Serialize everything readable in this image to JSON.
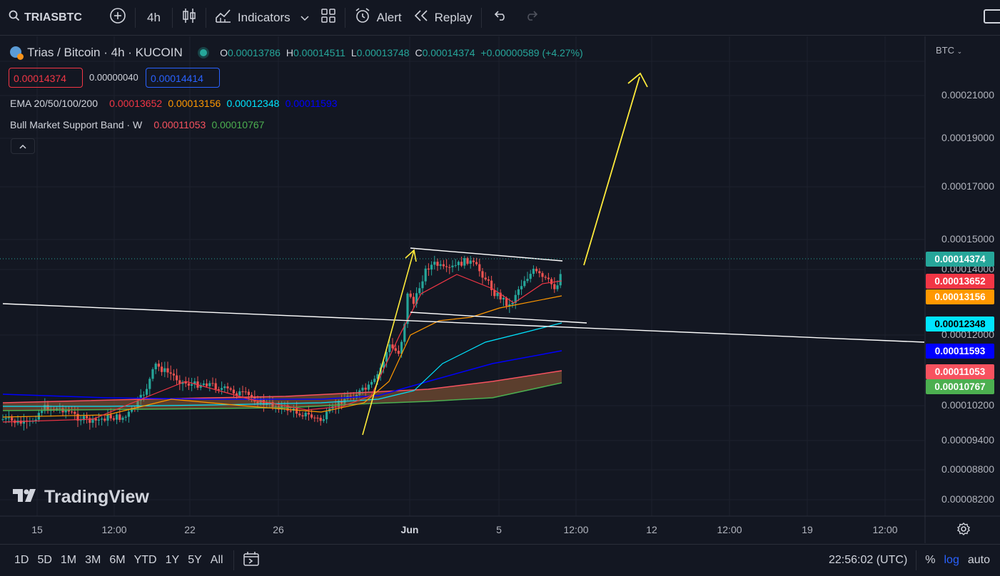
{
  "toolbar": {
    "symbol": "TRIASBTC",
    "interval": "4h",
    "indicators_label": "Indicators",
    "alert_label": "Alert",
    "replay_label": "Replay"
  },
  "header": {
    "title": "Trias / Bitcoin · 4h · KUCOIN",
    "o_label": "O",
    "o_value": "0.00013786",
    "h_label": "H",
    "h_value": "0.00014511",
    "l_label": "L",
    "l_value": "0.00013748",
    "c_label": "C",
    "c_value": "0.00014374",
    "change": "+0.00000589 (+4.27%)",
    "sell_price": "0.00014374",
    "spread": "0.00000040",
    "buy_price": "0.00014414",
    "currency": "BTC"
  },
  "indicators": {
    "ema_label": "EMA 20/50/100/200",
    "ema_values": [
      "0.00013652",
      "0.00013156",
      "0.00012348",
      "0.00011593"
    ],
    "bmsb_label": "Bull Market Support Band · W",
    "bmsb_values": [
      "0.00011053",
      "0.00010767"
    ]
  },
  "colors": {
    "up": "#26a69a",
    "down": "#ef5350",
    "ema20": "#f23645",
    "ema50": "#ff9800",
    "ema100": "#00e5ff",
    "ema200": "#0000ff",
    "bmsb_upper": "#f7525f",
    "bmsb_lower": "#4caf50",
    "annotation": "#ffeb3b"
  },
  "price_axis": [
    "0.00021000",
    "0.00019000",
    "0.00017000",
    "0.00015000",
    "0.00014000",
    "0.00012000",
    "0.00010200",
    "0.00009400",
    "0.00008800",
    "0.00008200"
  ],
  "price_tags": [
    {
      "text": "0.00014374",
      "bg": "#26a69a",
      "fg": "#ffffff"
    },
    {
      "text": "0.00013652",
      "bg": "#f23645",
      "fg": "#ffffff"
    },
    {
      "text": "0.00013156",
      "bg": "#ff9800",
      "fg": "#ffffff"
    },
    {
      "text": "0.00012348",
      "bg": "#00e5ff",
      "fg": "#000000"
    },
    {
      "text": "0.00011593",
      "bg": "#0000ff",
      "fg": "#ffffff"
    },
    {
      "text": "0.00011053",
      "bg": "#f7525f",
      "fg": "#ffffff"
    },
    {
      "text": "0.00010767",
      "bg": "#4caf50",
      "fg": "#ffffff"
    }
  ],
  "time_axis": [
    "15",
    "12:00",
    "22",
    "26",
    "Jun",
    "5",
    "12:00",
    "12",
    "12:00",
    "19",
    "12:00"
  ],
  "watermark": "TradingView",
  "bottombar": {
    "ranges": [
      "1D",
      "5D",
      "1M",
      "3M",
      "6M",
      "YTD",
      "1Y",
      "5Y",
      "All"
    ],
    "clock": "22:56:02 (UTC)",
    "percent": "%",
    "log": "log",
    "auto": "auto"
  },
  "chart_data": {
    "type": "line",
    "title": "Trias / Bitcoin · 4h · KUCOIN",
    "x": [
      "15",
      "12:00",
      "22",
      "26",
      "Jun",
      "5",
      "12:00",
      "12",
      "12:00",
      "19",
      "12:00"
    ],
    "y_axis": "log",
    "series": [
      {
        "name": "EMA 20",
        "last": 0.00013652
      },
      {
        "name": "EMA 50",
        "last": 0.00013156
      },
      {
        "name": "EMA 100",
        "last": 0.00012348
      },
      {
        "name": "EMA 200",
        "last": 0.00011593
      },
      {
        "name": "Bull Market Support Band upper",
        "last": 0.00011053
      },
      {
        "name": "Bull Market Support Band lower",
        "last": 0.00010767
      }
    ],
    "close": 0.00014374,
    "annotations": [
      "bull flag",
      "breakout arrow"
    ]
  }
}
